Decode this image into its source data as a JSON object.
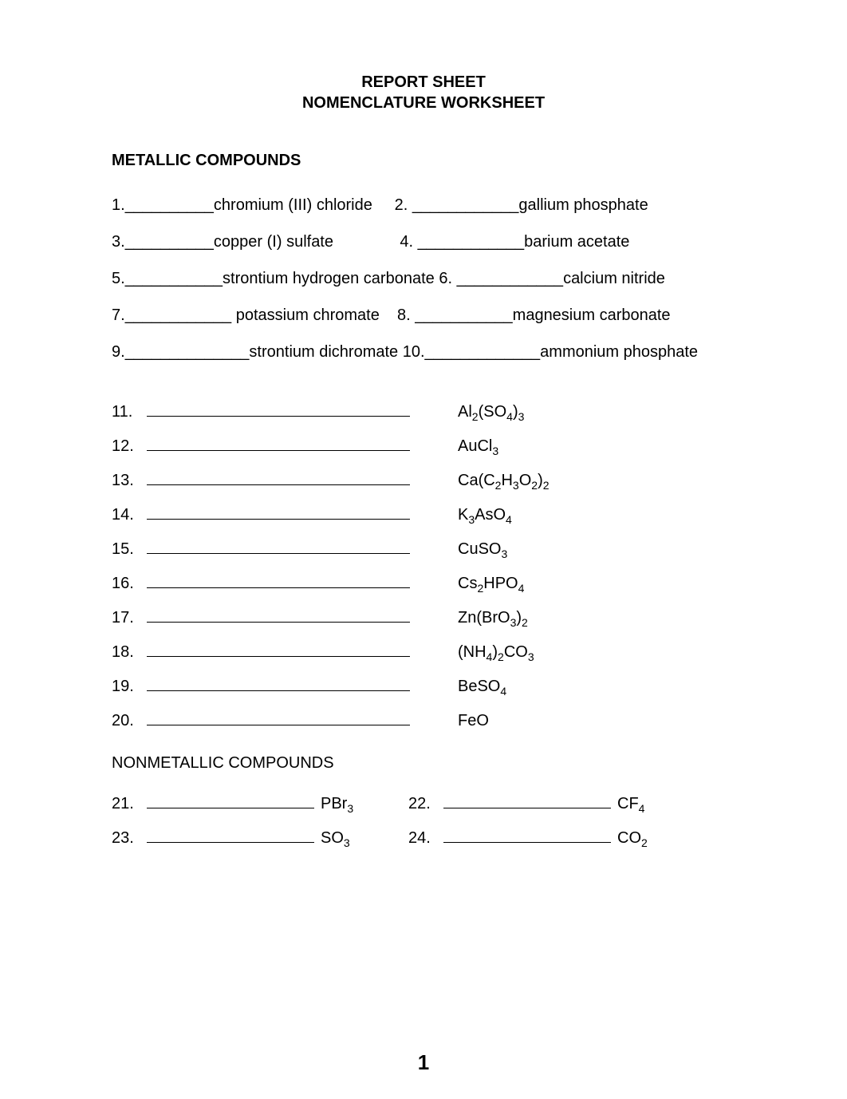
{
  "title_line1": "REPORT SHEET",
  "title_line2": "NOMENCLATURE WORKSHEET",
  "section1_heading": "METALLIC COMPOUNDS",
  "top_items": [
    {
      "n": "1.",
      "label": "chromium (III) chloride"
    },
    {
      "n": "2.",
      "label": "gallium phosphate"
    },
    {
      "n": "3.",
      "label": "copper (I) sulfate"
    },
    {
      "n": "4.",
      "label": "barium acetate"
    },
    {
      "n": "5.",
      "label": "strontium hydrogen carbonate"
    },
    {
      "n": "6.",
      "label": "calcium nitride"
    },
    {
      "n": "7.",
      "label": "potassium chromate"
    },
    {
      "n": "8.",
      "label": "magnesium carbonate"
    },
    {
      "n": "9.",
      "label": "strontium dichromate"
    },
    {
      "n": "10.",
      "label": "ammonium phosphate"
    }
  ],
  "formula_items": [
    {
      "n": "11.",
      "f": "Al<sub>2</sub>(SO<sub>4</sub>)<sub>3</sub>"
    },
    {
      "n": "12.",
      "f": "AuCl<sub>3</sub>"
    },
    {
      "n": "13.",
      "f": "Ca(C<sub>2</sub>H<sub>3</sub>O<sub>2</sub>)<sub>2</sub>"
    },
    {
      "n": "14.",
      "f": "K<sub>3</sub>AsO<sub>4</sub>"
    },
    {
      "n": "15.",
      "f": "CuSO<sub>3</sub>"
    },
    {
      "n": "16.",
      "f": "Cs<sub>2</sub>HPO<sub>4</sub>"
    },
    {
      "n": "17.",
      "f": "Zn(BrO<sub>3</sub>)<sub>2</sub>"
    },
    {
      "n": "18.",
      "f": "(NH<sub>4</sub>)<sub>2</sub>CO<sub>3</sub>"
    },
    {
      "n": "19.",
      "f": "BeSO<sub>4</sub>"
    },
    {
      "n": "20.",
      "f": "FeO"
    }
  ],
  "section2_heading": "NONMETALLIC COMPOUNDS",
  "pair_items": [
    {
      "n1": "21.",
      "f1": "PBr<sub>3</sub>",
      "n2": "22.",
      "f2": "CF<sub>4</sub>"
    },
    {
      "n1": "23.",
      "f1": "SO<sub>3</sub>",
      "n2": "24.",
      "f2": "CO<sub>2</sub>"
    }
  ],
  "page_number": "1"
}
